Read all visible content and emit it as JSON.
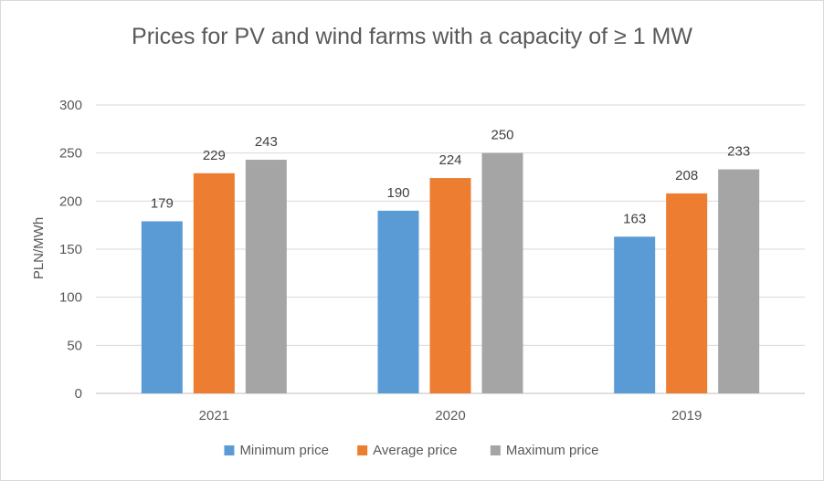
{
  "chart_data": {
    "type": "bar",
    "title": "Prices for PV and wind farms with a capacity of ≥ 1 MW",
    "xlabel": "",
    "ylabel": "PLN/MWh",
    "categories": [
      "2021",
      "2020",
      "2019"
    ],
    "series": [
      {
        "name": "Minimum price",
        "values": [
          179,
          190,
          163
        ],
        "color": "#5B9BD5"
      },
      {
        "name": "Average price",
        "values": [
          229,
          224,
          208
        ],
        "color": "#ED7D31"
      },
      {
        "name": "Maximum price",
        "values": [
          243,
          250,
          233
        ],
        "color": "#A5A5A5"
      }
    ],
    "ylim": [
      0,
      300
    ],
    "yticks": [
      0,
      50,
      100,
      150,
      200,
      250,
      300
    ],
    "grid": true,
    "legend": "bottom",
    "gridColor": "#d9d9d9",
    "axisColor": "#bfbfbf"
  }
}
